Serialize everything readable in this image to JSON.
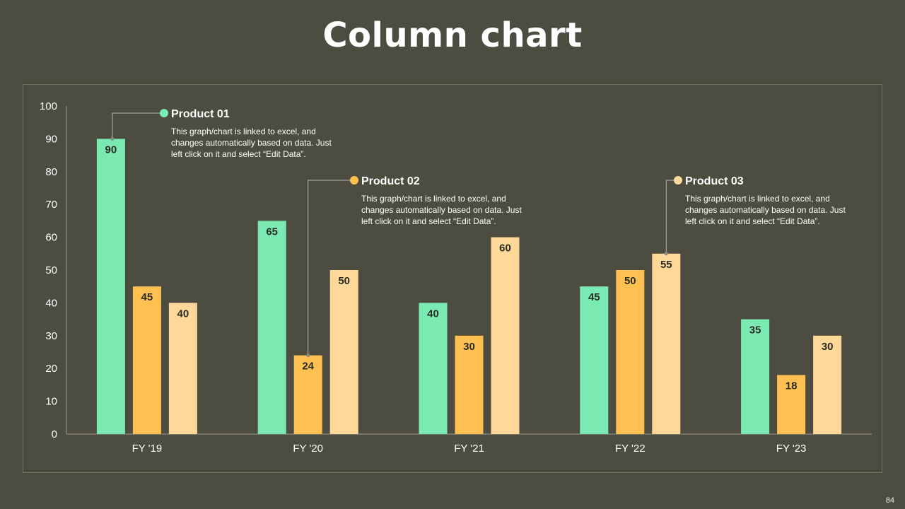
{
  "slide": {
    "title": "Column chart",
    "page_number": "84"
  },
  "colors": {
    "background": "#4d4c41",
    "product_01": "#7aeab2",
    "product_02": "#fec151",
    "product_03": "#fed899",
    "axis": "#9a9a8a",
    "text": "#ffffff"
  },
  "chart_data": {
    "type": "bar",
    "categories": [
      "FY '19",
      "FY '20",
      "FY '21",
      "FY '22",
      "FY '23"
    ],
    "series": [
      {
        "name": "Product 01",
        "values": [
          90,
          65,
          40,
          45,
          35
        ]
      },
      {
        "name": "Product 02",
        "values": [
          45,
          24,
          30,
          50,
          18
        ]
      },
      {
        "name": "Product 03",
        "values": [
          40,
          50,
          60,
          55,
          30
        ]
      }
    ],
    "ylim": [
      0,
      100
    ],
    "yticks": [
      0,
      10,
      20,
      30,
      40,
      50,
      60,
      70,
      80,
      90,
      100
    ],
    "grid": false,
    "data_labels": true
  },
  "callouts": [
    {
      "title": "Product 01",
      "series_index": 0,
      "category_index": 0,
      "text": [
        "This graph/chart is linked to excel, and",
        "changes automatically based on data. Just",
        "left click on it and select “Edit Data”."
      ]
    },
    {
      "title": "Product 02",
      "series_index": 1,
      "category_index": 1,
      "text": [
        "This graph/chart is linked to excel, and",
        "changes automatically based on data. Just",
        "left click on it and select “Edit Data”."
      ]
    },
    {
      "title": "Product 03",
      "series_index": 2,
      "category_index": 3,
      "text": [
        "This graph/chart is linked to excel, and",
        "changes automatically based on data. Just",
        "left click on it and select “Edit Data”."
      ]
    }
  ]
}
